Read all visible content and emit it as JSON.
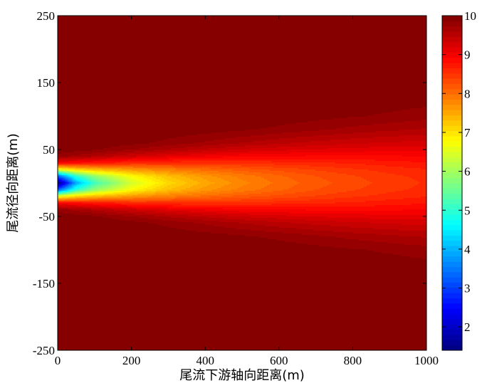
{
  "chart_data": {
    "type": "heatmap",
    "title": "",
    "xlabel": "尾流下游轴向距离(m)",
    "ylabel": "尾流径向距离(m)",
    "xlim": [
      0,
      1000
    ],
    "ylim": [
      -250,
      250
    ],
    "xticks": [
      "0",
      "200",
      "400",
      "600",
      "800",
      "1000"
    ],
    "yticks": [
      "250",
      "150",
      "50",
      "-50",
      "-150",
      "-250"
    ],
    "colormap": "jet",
    "levels": 64,
    "colorbar": {
      "range": [
        1.4,
        10
      ],
      "ticks": [
        "2",
        "3",
        "4",
        "5",
        "6",
        "7",
        "8",
        "9",
        "10"
      ],
      "placement": "right"
    },
    "x": [
      0,
      50,
      100,
      200,
      300,
      400,
      500,
      600,
      700,
      800,
      900,
      1000
    ],
    "y": [
      250,
      150,
      125,
      100,
      80,
      60,
      50,
      40,
      30,
      20,
      10,
      0,
      -10,
      -20,
      -30,
      -40,
      -50,
      -60,
      -80,
      -100,
      -125,
      -150,
      -250
    ],
    "z": [
      [
        10,
        10,
        10,
        10,
        10,
        10,
        10,
        10,
        10,
        10,
        10,
        10
      ],
      [
        10,
        10,
        10,
        10,
        10,
        10,
        10,
        10,
        10,
        10,
        9.99,
        9.98
      ],
      [
        10,
        10,
        10,
        10,
        10,
        10,
        10,
        10,
        9.99,
        9.97,
        9.95,
        9.93
      ],
      [
        10,
        10,
        10,
        10,
        10,
        9.99,
        9.98,
        9.96,
        9.92,
        9.88,
        9.84,
        9.79
      ],
      [
        10,
        10,
        10,
        10,
        9.98,
        9.94,
        9.89,
        9.83,
        9.76,
        9.69,
        9.63,
        9.58
      ],
      [
        10,
        9.99,
        9.98,
        9.92,
        9.82,
        9.71,
        9.6,
        9.5,
        9.42,
        9.36,
        9.31,
        9.28
      ],
      [
        9.98,
        9.94,
        9.89,
        9.74,
        9.58,
        9.44,
        9.32,
        9.24,
        9.18,
        9.14,
        9.11,
        9.1
      ],
      [
        9.8,
        9.69,
        9.57,
        9.34,
        9.16,
        9.04,
        8.96,
        8.92,
        8.91,
        8.91,
        8.91,
        8.93
      ],
      [
        8.96,
        8.86,
        8.76,
        8.61,
        8.55,
        8.54,
        8.56,
        8.6,
        8.64,
        8.68,
        8.73,
        8.78
      ],
      [
        6.64,
        7.12,
        7.36,
        7.65,
        7.87,
        8.04,
        8.18,
        8.3,
        8.4,
        8.5,
        8.58,
        8.65
      ],
      [
        3.2,
        4.97,
        5.85,
        6.78,
        7.31,
        7.65,
        7.9,
        8.09,
        8.25,
        8.37,
        8.48,
        8.57
      ],
      [
        1.4,
        3.94,
        5.17,
        6.42,
        7.09,
        7.51,
        7.8,
        8.02,
        8.19,
        8.33,
        8.44,
        8.54
      ],
      [
        3.2,
        4.97,
        5.85,
        6.78,
        7.31,
        7.65,
        7.9,
        8.09,
        8.25,
        8.37,
        8.48,
        8.57
      ],
      [
        6.64,
        7.12,
        7.36,
        7.65,
        7.87,
        8.04,
        8.18,
        8.3,
        8.4,
        8.5,
        8.58,
        8.65
      ],
      [
        8.96,
        8.86,
        8.76,
        8.61,
        8.55,
        8.54,
        8.56,
        8.6,
        8.64,
        8.68,
        8.73,
        8.78
      ],
      [
        9.8,
        9.69,
        9.57,
        9.34,
        9.16,
        9.04,
        8.96,
        8.92,
        8.91,
        8.91,
        8.91,
        8.93
      ],
      [
        9.98,
        9.94,
        9.89,
        9.74,
        9.58,
        9.44,
        9.32,
        9.24,
        9.18,
        9.14,
        9.11,
        9.1
      ],
      [
        10,
        9.99,
        9.98,
        9.92,
        9.82,
        9.71,
        9.6,
        9.5,
        9.42,
        9.36,
        9.31,
        9.28
      ],
      [
        10,
        10,
        10,
        10,
        9.98,
        9.94,
        9.89,
        9.83,
        9.76,
        9.69,
        9.63,
        9.58
      ],
      [
        10,
        10,
        10,
        10,
        10,
        9.99,
        9.98,
        9.96,
        9.92,
        9.88,
        9.84,
        9.79
      ],
      [
        10,
        10,
        10,
        10,
        10,
        10,
        10,
        10,
        9.99,
        9.97,
        9.95,
        9.93
      ],
      [
        10,
        10,
        10,
        10,
        10,
        10,
        10,
        10,
        10,
        10,
        9.99,
        9.98
      ],
      [
        10,
        10,
        10,
        10,
        10,
        10,
        10,
        10,
        10,
        10,
        10,
        10
      ]
    ]
  }
}
